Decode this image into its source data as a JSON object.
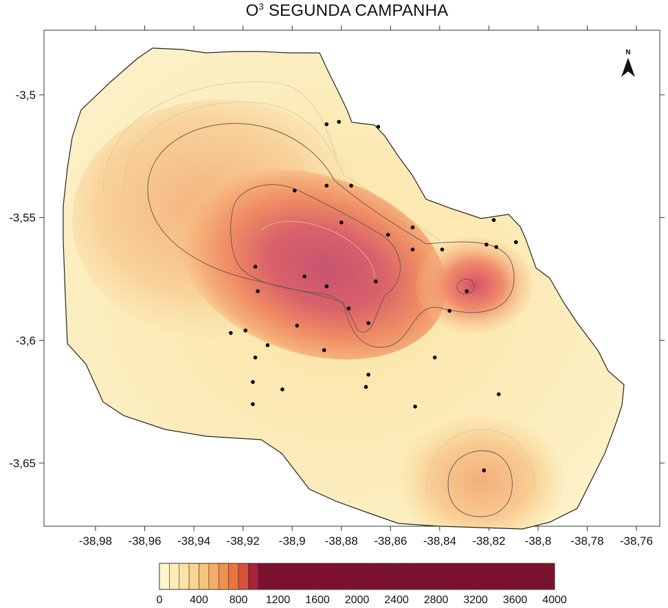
{
  "title": {
    "main": "O",
    "superscript": "3",
    "rest": " SEGUNDA CAMPANHA"
  },
  "north_arrow_label": "N",
  "chart_data": {
    "type": "heatmap",
    "title": "O³ SEGUNDA CAMPANHA",
    "x_ticks": [
      "-38,98",
      "-38,96",
      "-38,94",
      "-38,92",
      "-38,9",
      "-38,88",
      "-38,86",
      "-38,84",
      "-38,82",
      "-38,8",
      "-38,78",
      "-38,76"
    ],
    "x_tick_values": [
      -38.98,
      -38.96,
      -38.94,
      -38.92,
      -38.9,
      -38.88,
      -38.86,
      -38.84,
      -38.82,
      -38.8,
      -38.78,
      -38.76
    ],
    "y_ticks": [
      "-3,5",
      "-3,55",
      "-3,6",
      "-3,65"
    ],
    "y_tick_values": [
      -3.5,
      -3.55,
      -3.6,
      -3.65
    ],
    "xlim": [
      -38.99,
      -38.75
    ],
    "ylim": [
      -3.675,
      -3.475
    ],
    "legend": {
      "position": "bottom",
      "min": 0,
      "max": 4000,
      "step": 100,
      "labels": [
        "0",
        "400",
        "800",
        "1200",
        "1600",
        "2000",
        "2400",
        "2800",
        "3200",
        "3600",
        "4000"
      ],
      "colors": [
        "#fdf5cc",
        "#fcedb7",
        "#fbe3a4",
        "#f9d690",
        "#f7c47b",
        "#f4ad64",
        "#f0924f",
        "#ea7440",
        "#d9513a",
        "#a8233a",
        "#7e1130"
      ]
    },
    "hotspots": [
      {
        "lon": -38.884,
        "lat": -3.566,
        "level": 850
      },
      {
        "lon": -38.829,
        "lat": -3.579,
        "level": 700
      },
      {
        "lon": -38.821,
        "lat": -3.658,
        "level": 450
      }
    ],
    "sample_points": [
      {
        "lon": -38.886,
        "lat": -3.512
      },
      {
        "lon": -38.881,
        "lat": -3.511
      },
      {
        "lon": -38.865,
        "lat": -3.513
      },
      {
        "lon": -38.899,
        "lat": -3.539
      },
      {
        "lon": -38.886,
        "lat": -3.537
      },
      {
        "lon": -38.876,
        "lat": -3.537
      },
      {
        "lon": -38.88,
        "lat": -3.552
      },
      {
        "lon": -38.861,
        "lat": -3.557
      },
      {
        "lon": -38.851,
        "lat": -3.554
      },
      {
        "lon": -38.851,
        "lat": -3.563
      },
      {
        "lon": -38.839,
        "lat": -3.563
      },
      {
        "lon": -38.818,
        "lat": -3.551
      },
      {
        "lon": -38.821,
        "lat": -3.561
      },
      {
        "lon": -38.817,
        "lat": -3.562
      },
      {
        "lon": -38.809,
        "lat": -3.56
      },
      {
        "lon": -38.915,
        "lat": -3.57
      },
      {
        "lon": -38.895,
        "lat": -3.574
      },
      {
        "lon": -38.886,
        "lat": -3.578
      },
      {
        "lon": -38.866,
        "lat": -3.576
      },
      {
        "lon": -38.914,
        "lat": -3.58
      },
      {
        "lon": -38.829,
        "lat": -3.58
      },
      {
        "lon": -38.877,
        "lat": -3.587
      },
      {
        "lon": -38.836,
        "lat": -3.588
      },
      {
        "lon": -38.869,
        "lat": -3.593
      },
      {
        "lon": -38.898,
        "lat": -3.594
      },
      {
        "lon": -38.925,
        "lat": -3.597
      },
      {
        "lon": -38.919,
        "lat": -3.596
      },
      {
        "lon": -38.91,
        "lat": -3.602
      },
      {
        "lon": -38.915,
        "lat": -3.607
      },
      {
        "lon": -38.887,
        "lat": -3.604
      },
      {
        "lon": -38.842,
        "lat": -3.607
      },
      {
        "lon": -38.869,
        "lat": -3.614
      },
      {
        "lon": -38.916,
        "lat": -3.617
      },
      {
        "lon": -38.87,
        "lat": -3.619
      },
      {
        "lon": -38.904,
        "lat": -3.62
      },
      {
        "lon": -38.816,
        "lat": -3.622
      },
      {
        "lon": -38.916,
        "lat": -3.626
      },
      {
        "lon": -38.85,
        "lat": -3.627
      },
      {
        "lon": -38.822,
        "lat": -3.653
      }
    ]
  }
}
